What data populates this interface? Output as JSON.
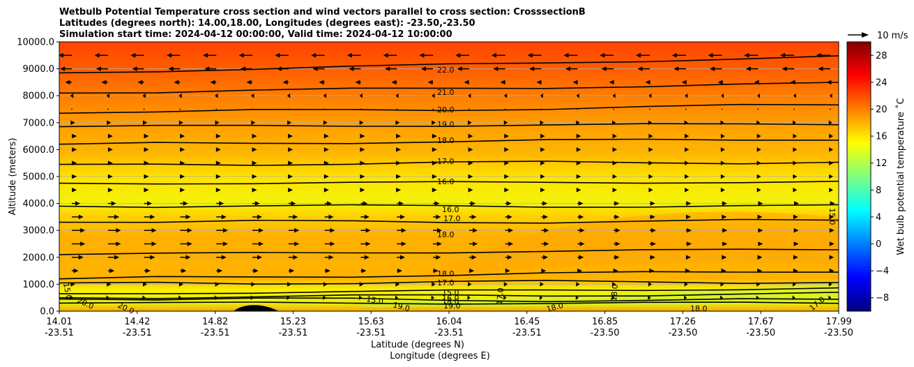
{
  "chart_data": {
    "type": "contour_cross_section",
    "title_lines": [
      "Wetbulb Potential Temperature cross section and wind vectors parallel to cross section: CrosssectionB",
      "Latitudes (degrees north): 14.00,18.00, Longitudes (degrees east): -23.50,-23.50",
      "Simulation start time: 2024-04-12 00:00:00, Valid time: 2024-04-12 10:00:00"
    ],
    "ylabel": "Altitude (meters)",
    "xlabel_lat": "Latitude (degrees N)",
    "xlabel_lon": "Longitude (degrees E)",
    "ylim": [
      0,
      10000
    ],
    "y_ticks": [
      0,
      1000,
      2000,
      3000,
      4000,
      5000,
      6000,
      7000,
      8000,
      9000,
      10000
    ],
    "y_tick_labels": [
      "0.0",
      "1000.0",
      "2000.0",
      "3000.0",
      "4000.0",
      "5000.0",
      "6000.0",
      "7000.0",
      "8000.0",
      "9000.0",
      "10000.0"
    ],
    "x_ticks": [
      {
        "lat": "14.01",
        "lon": "-23.51"
      },
      {
        "lat": "14.42",
        "lon": "-23.51"
      },
      {
        "lat": "14.82",
        "lon": "-23.51"
      },
      {
        "lat": "15.23",
        "lon": "-23.51"
      },
      {
        "lat": "15.63",
        "lon": "-23.51"
      },
      {
        "lat": "16.04",
        "lon": "-23.51"
      },
      {
        "lat": "16.45",
        "lon": "-23.51"
      },
      {
        "lat": "16.85",
        "lon": "-23.50"
      },
      {
        "lat": "17.26",
        "lon": "-23.50"
      },
      {
        "lat": "17.67",
        "lon": "-23.50"
      },
      {
        "lat": "17.99",
        "lon": "-23.50"
      }
    ],
    "colorbar": {
      "label": "Wet bulb potential temperature ˚C",
      "min": -10,
      "max": 30,
      "ticks": [
        -8,
        -4,
        0,
        4,
        8,
        12,
        16,
        20,
        24,
        28
      ],
      "tick_labels": [
        "−8",
        "−4",
        "0",
        "4",
        "8",
        "12",
        "16",
        "20",
        "24",
        "28"
      ],
      "colors": [
        "#00007f",
        "#0000ff",
        "#007fff",
        "#00ffff",
        "#7fff7f",
        "#ffff00",
        "#ff7f00",
        "#ff0000",
        "#7f0000"
      ]
    },
    "quiver_key": {
      "label": "10 m/s",
      "speed": 10
    },
    "contours": [
      {
        "value": 22,
        "label": "22.0",
        "alt_left": 8850,
        "alt_right": 9450
      },
      {
        "value": 21,
        "label": "21.0",
        "alt_left": 8100,
        "alt_right": 8450
      },
      {
        "value": 20,
        "label": "20.0",
        "alt_left": 7350,
        "alt_right": 7650
      },
      {
        "value": 19,
        "label": "19.0",
        "alt_left": 6850,
        "alt_right": 6950
      },
      {
        "value": 18,
        "label": "18.0",
        "alt_left": 6200,
        "alt_right": 6400
      },
      {
        "value": 17,
        "label": "17.0",
        "alt_left": 5450,
        "alt_right": 5550
      },
      {
        "value": 16,
        "label": "16.0",
        "alt_left": 4750,
        "alt_right": 4800
      },
      {
        "value": 16,
        "label": "16.0",
        "alt_left": 3900,
        "alt_right": 3900
      },
      {
        "value": 17,
        "label": "17.0",
        "alt_left": 3300,
        "alt_right": 3350
      },
      {
        "value": 18,
        "label": "18.0",
        "alt_left": 2100,
        "alt_right": 2300
      },
      {
        "value": 18,
        "label": "18.0",
        "alt_left": 1200,
        "alt_right": 1500
      },
      {
        "value": 17,
        "label": "17.0",
        "alt_left": 1050,
        "alt_right": 1100
      },
      {
        "value": 16,
        "label": "16.0",
        "alt_left": 650,
        "alt_right": 850
      },
      {
        "value": 15,
        "label": "15.0",
        "alt_left": 500,
        "alt_right": 650
      },
      {
        "value": 18,
        "label": "18.0",
        "alt_left": 450,
        "alt_right": 400
      },
      {
        "value": 19,
        "label": "19.0",
        "alt_left": 300,
        "alt_right": 300
      }
    ],
    "other_contour_labels": [
      "15.0",
      "20.0",
      "20.0",
      "15.0",
      "19.0",
      "17.0",
      "18.0",
      "18.0",
      "18.0",
      "17.0",
      "15.0",
      "16.0"
    ],
    "wind_u_profile": [
      {
        "alt": 9500,
        "u": -8
      },
      {
        "alt": 9000,
        "u": -7
      },
      {
        "alt": 8500,
        "u": -4
      },
      {
        "alt": 8000,
        "u": -1
      },
      {
        "alt": 7500,
        "u": 0
      },
      {
        "alt": 7000,
        "u": 2
      },
      {
        "alt": 6500,
        "u": 3
      },
      {
        "alt": 6000,
        "u": 3
      },
      {
        "alt": 5500,
        "u": 3
      },
      {
        "alt": 5000,
        "u": 3
      },
      {
        "alt": 4500,
        "u": 3
      },
      {
        "alt": 4000,
        "u": 5
      },
      {
        "alt": 3500,
        "u": 7
      },
      {
        "alt": 3000,
        "u": 8
      },
      {
        "alt": 2500,
        "u": 8
      },
      {
        "alt": 2000,
        "u": 7
      },
      {
        "alt": 1500,
        "u": 4
      },
      {
        "alt": 1000,
        "u": 2
      },
      {
        "alt": 500,
        "u": 1
      }
    ]
  }
}
